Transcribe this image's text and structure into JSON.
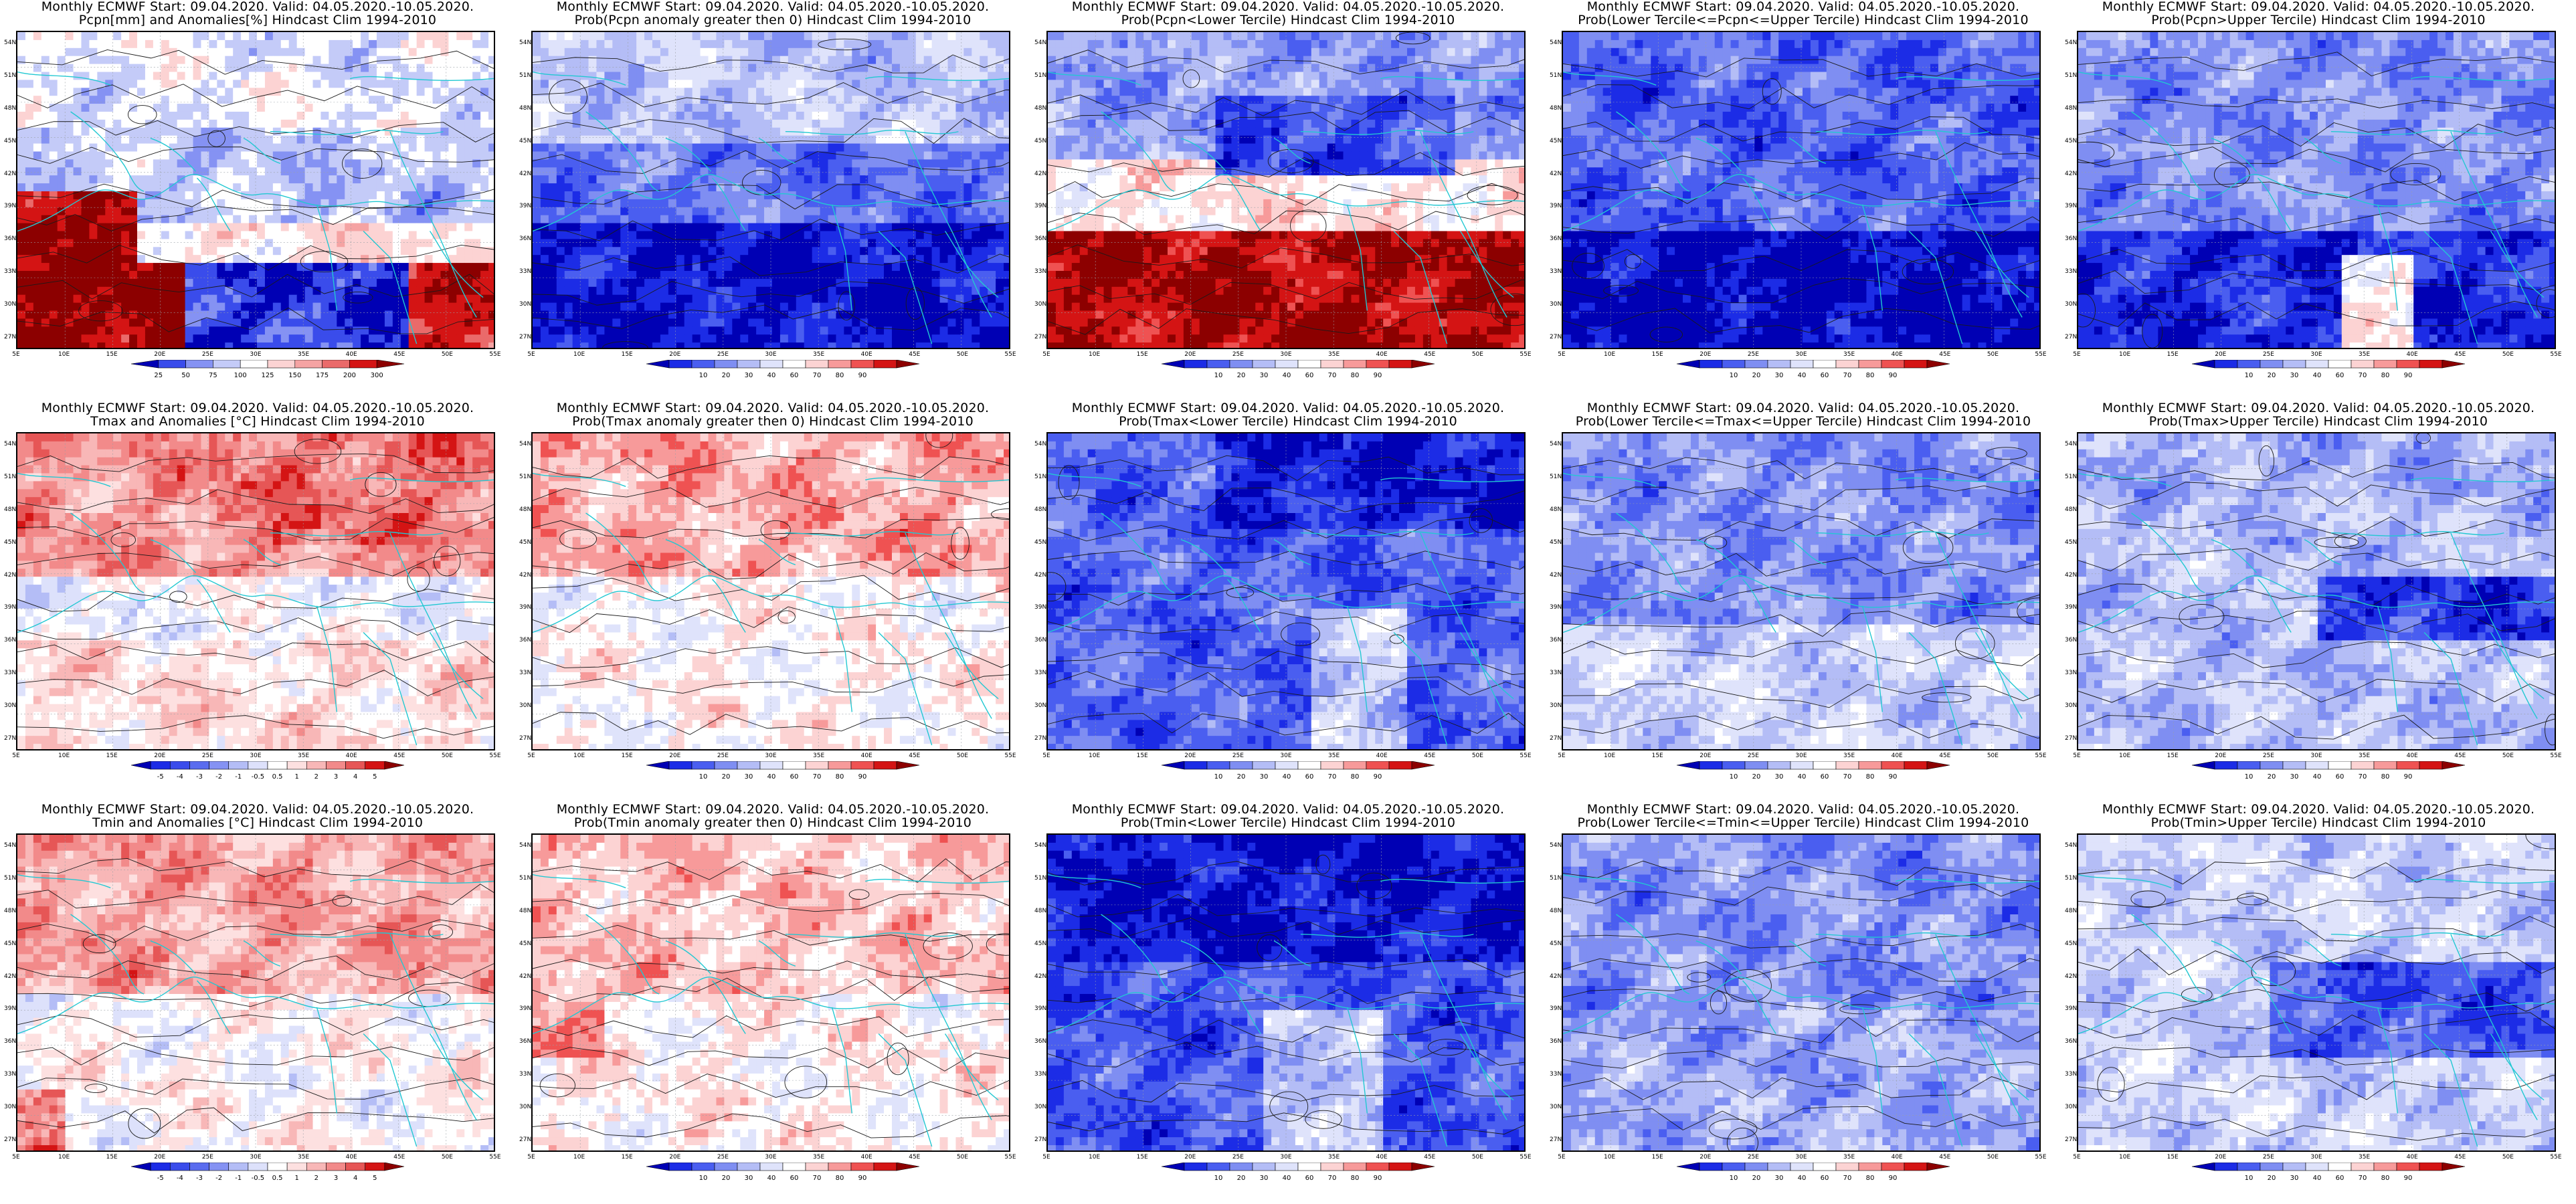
{
  "panels": [
    {
      "title1": "Monthly ECMWF Start: 09.04.2020. Valid: 04.05.2020.-10.05.2020.",
      "title2": "Pcpn[mm] and Anomalies[%] Hindcast Clim 1994-2010",
      "scale": "pcpn_anom",
      "pattern": "pcpn_anom"
    },
    {
      "title1": "Monthly ECMWF Start: 09.04.2020. Valid: 04.05.2020.-10.05.2020.",
      "title2": "Prob(Pcpn anomaly greater then 0) Hindcast Clim 1994-2010",
      "scale": "prob",
      "pattern": "pcpn_prob_pos"
    },
    {
      "title1": "Monthly ECMWF Start: 09.04.2020. Valid: 04.05.2020.-10.05.2020.",
      "title2": "Prob(Pcpn<Lower Tercile) Hindcast Clim 1994-2010",
      "scale": "prob",
      "pattern": "pcpn_lower"
    },
    {
      "title1": "Monthly ECMWF Start: 09.04.2020. Valid: 04.05.2020.-10.05.2020.",
      "title2": "Prob(Lower Tercile<=Pcpn<=Upper Tercile) Hindcast Clim 1994-2010",
      "scale": "prob",
      "pattern": "pcpn_middle"
    },
    {
      "title1": "Monthly ECMWF Start: 09.04.2020. Valid: 04.05.2020.-10.05.2020.",
      "title2": "Prob(Pcpn>Upper Tercile) Hindcast Clim 1994-2010",
      "scale": "prob",
      "pattern": "pcpn_upper"
    },
    {
      "title1": "Monthly ECMWF Start: 09.04.2020. Valid: 04.05.2020.-10.05.2020.",
      "title2": "Tmax and Anomalies [°C] Hindcast Clim 1994-2010",
      "scale": "temp_anom",
      "pattern": "tmax_anom"
    },
    {
      "title1": "Monthly ECMWF Start: 09.04.2020. Valid: 04.05.2020.-10.05.2020.",
      "title2": "Prob(Tmax anomaly greater then 0) Hindcast Clim 1994-2010",
      "scale": "prob",
      "pattern": "tmax_prob_pos"
    },
    {
      "title1": "Monthly ECMWF Start: 09.04.2020. Valid: 04.05.2020.-10.05.2020.",
      "title2": "Prob(Tmax<Lower Tercile) Hindcast Clim 1994-2010",
      "scale": "prob",
      "pattern": "tmax_lower"
    },
    {
      "title1": "Monthly ECMWF Start: 09.04.2020. Valid: 04.05.2020.-10.05.2020.",
      "title2": "Prob(Lower Tercile<=Tmax<=Upper Tercile) Hindcast Clim 1994-2010",
      "scale": "prob",
      "pattern": "tmax_middle"
    },
    {
      "title1": "Monthly ECMWF Start: 09.04.2020. Valid: 04.05.2020.-10.05.2020.",
      "title2": "Prob(Tmax>Upper Tercile) Hindcast Clim 1994-2010",
      "scale": "prob",
      "pattern": "tmax_upper"
    },
    {
      "title1": "Monthly ECMWF Start: 09.04.2020. Valid: 04.05.2020.-10.05.2020.",
      "title2": "Tmin and Anomalies [°C] Hindcast Clim 1994-2010",
      "scale": "temp_anom",
      "pattern": "tmin_anom"
    },
    {
      "title1": "Monthly ECMWF Start: 09.04.2020. Valid: 04.05.2020.-10.05.2020.",
      "title2": "Prob(Tmin anomaly greater then 0) Hindcast Clim 1994-2010",
      "scale": "prob",
      "pattern": "tmin_prob_pos"
    },
    {
      "title1": "Monthly ECMWF Start: 09.04.2020. Valid: 04.05.2020.-10.05.2020.",
      "title2": "Prob(Tmin<Lower Tercile) Hindcast Clim 1994-2010",
      "scale": "prob",
      "pattern": "tmin_lower"
    },
    {
      "title1": "Monthly ECMWF Start: 09.04.2020. Valid: 04.05.2020.-10.05.2020.",
      "title2": "Prob(Lower Tercile<=Tmin<=Upper Tercile) Hindcast Clim 1994-2010",
      "scale": "prob",
      "pattern": "tmin_middle"
    },
    {
      "title1": "Monthly ECMWF Start: 09.04.2020. Valid: 04.05.2020.-10.05.2020.",
      "title2": "Prob(Tmin>Upper Tercile) Hindcast Clim 1994-2010",
      "scale": "prob",
      "pattern": "tmin_upper"
    }
  ],
  "axes": {
    "lat_labels": [
      "54N",
      "51N",
      "48N",
      "45N",
      "42N",
      "39N",
      "36N",
      "33N",
      "30N",
      "27N"
    ],
    "lon_labels": [
      "5E",
      "10E",
      "15E",
      "20E",
      "25E",
      "30E",
      "35E",
      "40E",
      "45E",
      "50E",
      "55E"
    ]
  },
  "scales": {
    "prob": {
      "labels": [
        "10",
        "20",
        "30",
        "40",
        "60",
        "70",
        "80",
        "90"
      ],
      "colors": [
        "#0000b4",
        "#1c2ce6",
        "#4a5ef0",
        "#7f8ef2",
        "#b4bdf6",
        "#dfe3fb",
        "#ffffff",
        "#fcd3d3",
        "#f79a9a",
        "#ef5252",
        "#d41414",
        "#8c0000"
      ]
    },
    "temp_anom": {
      "labels": [
        "-5",
        "-4",
        "-3",
        "-2",
        "-1",
        "-0.5",
        "0.5",
        "1",
        "2",
        "3",
        "4",
        "5"
      ],
      "colors": [
        "#0000b4",
        "#1c2ce6",
        "#3a4ceb",
        "#5a6cef",
        "#8592f3",
        "#b4bdf6",
        "#dde1fb",
        "#ffffff",
        "#fde0e0",
        "#f8b7b7",
        "#f28a8a",
        "#e65656",
        "#d41414",
        "#8c0000"
      ]
    },
    "pcpn_anom": {
      "labels": [
        "25",
        "50",
        "75",
        "100",
        "125",
        "150",
        "175",
        "200",
        "300"
      ],
      "colors": [
        "#0000b4",
        "#3a4ceb",
        "#8592f3",
        "#c4cbf8",
        "#ffffff",
        "#fcd3d3",
        "#f5a3a3",
        "#ea6a6a",
        "#d41414",
        "#8c0000"
      ]
    }
  },
  "colors": {
    "coast": "#22c8d2",
    "contour": "#1a1a1a",
    "grid": "#9aa0a6"
  }
}
